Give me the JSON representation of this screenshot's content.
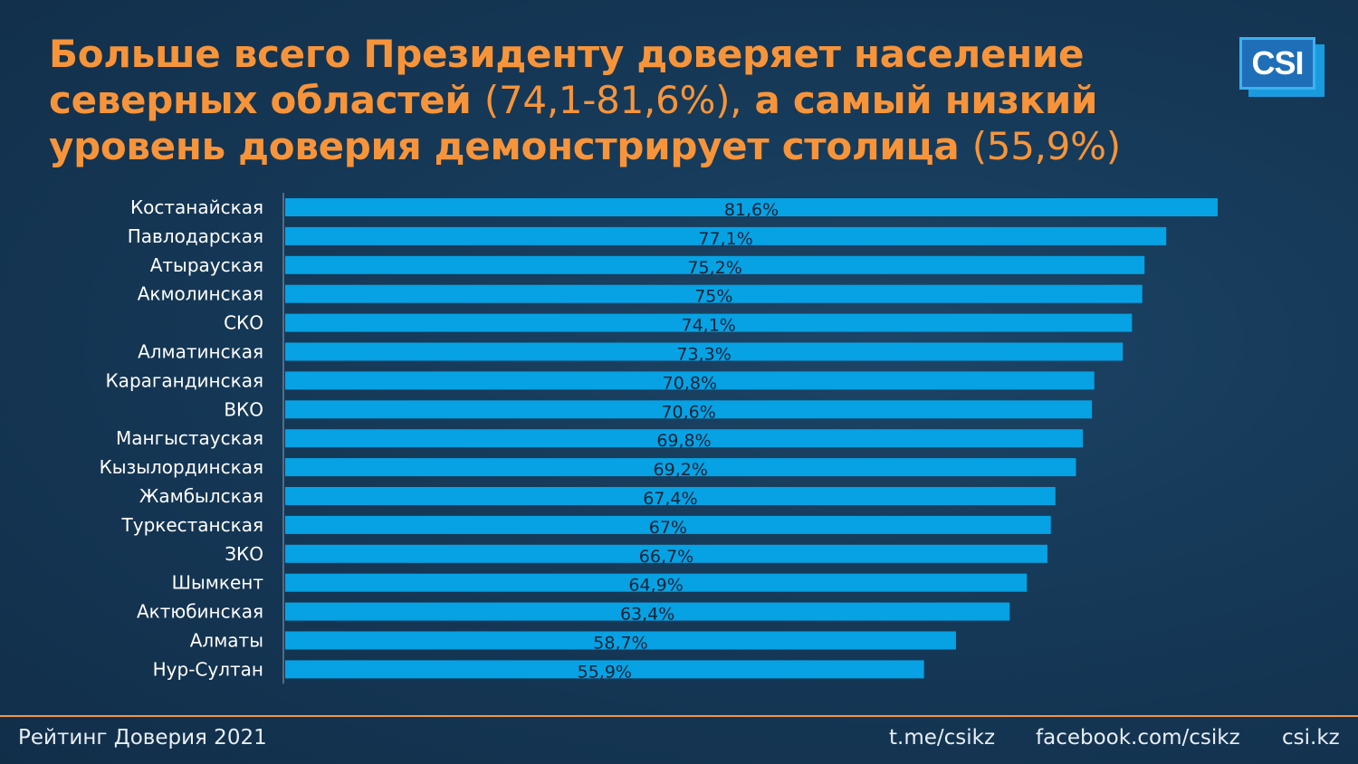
{
  "title": {
    "line1_bold": "Больше всего Президенту доверяет население",
    "line2_bold": "северных областей",
    "line2_light": "(74,1-81,6%),",
    "line2_bold_tail": "а самый низкий",
    "line3_bold": "уровень доверия демонстрирует столица",
    "line3_light": "(55,9%)"
  },
  "logo": {
    "text": "CSI"
  },
  "footer": {
    "left": "Рейтинг Доверия 2021",
    "link1": "t.me/csikz",
    "link2": "facebook.com/csikz",
    "link3": "csi.kz"
  },
  "colors": {
    "bar": "#06a2e3",
    "accent": "#f7943a",
    "value_label": "#0f2236"
  },
  "chart_data": {
    "type": "bar",
    "orientation": "horizontal",
    "categories": [
      "Костанайская",
      "Павлодарская",
      "Атырауская",
      "Акмолинская",
      "СКО",
      "Алматинская",
      "Карагандинская",
      "ВКО",
      "Мангыстауская",
      "Кызылординская",
      "Жамбылская",
      "Туркестанская",
      "ЗКО",
      "Шымкент",
      "Актюбинская",
      "Алматы",
      "Нур-Султан"
    ],
    "values": [
      81.6,
      77.1,
      75.2,
      75,
      74.1,
      73.3,
      70.8,
      70.6,
      69.8,
      69.2,
      67.4,
      67,
      66.7,
      64.9,
      63.4,
      58.7,
      55.9
    ],
    "value_labels": [
      "81,6%",
      "77,1%",
      "75,2%",
      "75%",
      "74,1%",
      "73,3%",
      "70,8%",
      "70,6%",
      "69,8%",
      "69,2%",
      "67,4%",
      "67%",
      "66,7%",
      "64,9%",
      "63,4%",
      "58,7%",
      "55,9%"
    ],
    "xlim": [
      0,
      81.6
    ],
    "grid": false,
    "legend": "none"
  }
}
